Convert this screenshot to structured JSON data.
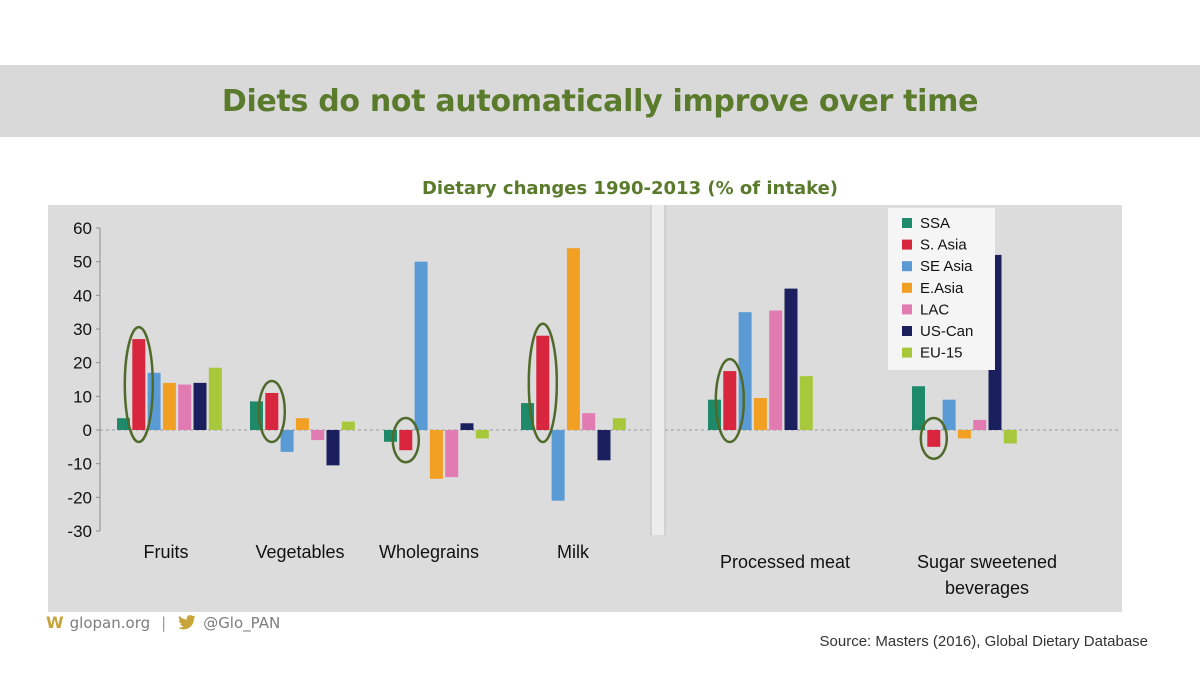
{
  "slide": {
    "title": "Diets do not automatically improve over time",
    "chart_title": "Dietary changes 1990-2013 (% of intake)",
    "footer": {
      "site": "glopan.org",
      "separator": "|",
      "twitter": "@Glo_PAN",
      "site_icon": "w-logo-icon",
      "twitter_icon": "bird-icon"
    },
    "source": "Source: Masters (2016), Global Dietary Database"
  },
  "colors": {
    "title_green": "#5a7a2c",
    "plot_bg": "#dcdcdc",
    "legend_bg": "#f5f5f5",
    "highlight_ellipse": "#4f6a2a"
  },
  "chart_data": {
    "type": "bar",
    "title": "Dietary changes 1990-2013 (% of intake)",
    "ylim": [
      -30,
      60
    ],
    "yticks": [
      -30,
      -20,
      -10,
      0,
      10,
      20,
      30,
      40,
      50,
      60
    ],
    "ytick_labels": [
      "-30",
      "-20",
      "-10",
      "0",
      "10",
      "20",
      "30",
      "40",
      "50",
      "60"
    ],
    "grid": false,
    "zero_line": "dashed",
    "legend_position": "top-right",
    "categories": [
      {
        "label": [
          "Fruits"
        ],
        "panel": 1
      },
      {
        "label": [
          "Vegetables"
        ],
        "panel": 1
      },
      {
        "label": [
          "Wholegrains"
        ],
        "panel": 1
      },
      {
        "label": [
          "Milk"
        ],
        "panel": 1
      },
      {
        "label": [
          "Processed meat"
        ],
        "panel": 2
      },
      {
        "label": [
          "Sugar sweetened",
          "beverages"
        ],
        "panel": 2
      }
    ],
    "series": [
      {
        "name": "SSA",
        "color": "#1e8a6a",
        "values": [
          3.5,
          8.5,
          -3.5,
          8,
          9,
          13
        ]
      },
      {
        "name": "S. Asia",
        "color": "#d7263d",
        "values": [
          27,
          11,
          -6,
          28,
          17.5,
          -5
        ]
      },
      {
        "name": "SE Asia",
        "color": "#5b9bd5",
        "values": [
          17,
          -6.5,
          50,
          -21,
          35,
          9
        ]
      },
      {
        "name": "E.Asia",
        "color": "#f2a024",
        "values": [
          14,
          3.5,
          -14.5,
          54,
          9.5,
          -2.5
        ]
      },
      {
        "name": "LAC",
        "color": "#e37bb3",
        "values": [
          13.5,
          -3,
          -14,
          5,
          35.5,
          3
        ]
      },
      {
        "name": "US-Can",
        "color": "#1b1f5e",
        "values": [
          14,
          -10.5,
          2,
          -9,
          42,
          52
        ]
      },
      {
        "name": "EU-15",
        "color": "#a8c83b",
        "values": [
          18.5,
          2.5,
          -2.5,
          3.5,
          16,
          -4
        ]
      }
    ],
    "highlighted": [
      {
        "series": "S. Asia",
        "category": 0
      },
      {
        "series": "S. Asia",
        "category": 1
      },
      {
        "series": "S. Asia",
        "category": 2
      },
      {
        "series": "S. Asia",
        "category": 3
      },
      {
        "series": "S. Asia",
        "category": 4
      },
      {
        "series": "S. Asia",
        "category": 5
      }
    ]
  }
}
